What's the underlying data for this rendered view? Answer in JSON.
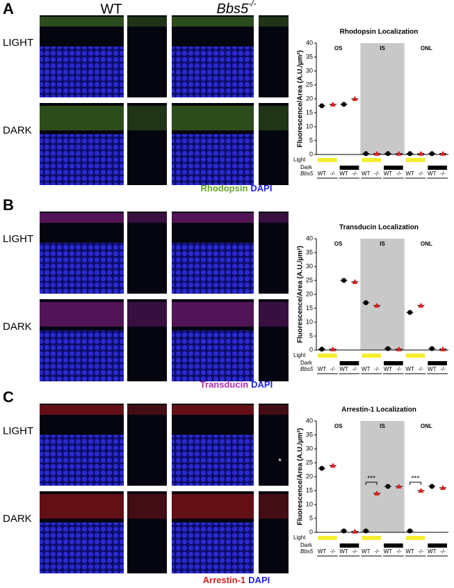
{
  "panels": [
    {
      "letter": "A",
      "header": {
        "wt": "WT",
        "ko": "Bbs5",
        "ko_sup": "-/-"
      },
      "rows": [
        "LIGHT",
        "DARK"
      ],
      "stain": [
        {
          "text": "Rhodopsin",
          "color": "#5fa32c"
        },
        {
          "text": "DAPI",
          "color": "#1f1fe0"
        }
      ],
      "chart": {
        "type": "scatter",
        "title": "Rhodopsin Localization",
        "ylabel": "Fluorescence/Area (A.U./µm²)",
        "ylim": [
          0,
          40
        ],
        "yticks": [
          0,
          5,
          10,
          15,
          20,
          25,
          30,
          35,
          40
        ],
        "regions": [
          "OS",
          "IS",
          "ONL"
        ],
        "categories": [
          "WT",
          "-/-",
          "WT",
          "-/-",
          "WT",
          "-/-",
          "WT",
          "-/-",
          "WT",
          "-/-",
          "WT",
          "-/-"
        ],
        "conditions": [
          "Light",
          "Dark"
        ],
        "genotype_label": "Bbs5",
        "markers": [
          "circle",
          "triangle"
        ],
        "series": [
          {
            "color": "#000000",
            "values": [
              17.5,
              null,
              18,
              null,
              0.3,
              null,
              0.3,
              null,
              0.3,
              null,
              0.3,
              null
            ]
          },
          {
            "color": "#e01b1b",
            "values": [
              null,
              18,
              null,
              20,
              null,
              0.3,
              null,
              0.3,
              null,
              0.3,
              null,
              0.3
            ]
          }
        ]
      }
    },
    {
      "letter": "B",
      "rows": [
        "LIGHT",
        "DARK"
      ],
      "stain": [
        {
          "text": "Transducin",
          "color": "#b02ab0"
        },
        {
          "text": "DAPI",
          "color": "#1f1fe0"
        }
      ],
      "chart": {
        "type": "scatter",
        "title": "Transducin Localization",
        "ylabel": "Fluorescence/Area (A.U./µm²)",
        "ylim": [
          0,
          40
        ],
        "yticks": [
          0,
          5,
          10,
          15,
          20,
          25,
          30,
          35,
          40
        ],
        "regions": [
          "OS",
          "IS",
          "ONL"
        ],
        "categories": [
          "WT",
          "-/-",
          "WT",
          "-/-",
          "WT",
          "-/-",
          "WT",
          "-/-",
          "WT",
          "-/-",
          "WT",
          "-/-"
        ],
        "conditions": [
          "Light",
          "Dark"
        ],
        "genotype_label": "Bbs5",
        "markers": [
          "circle",
          "triangle"
        ],
        "series": [
          {
            "color": "#000000",
            "values": [
              0.3,
              null,
              25,
              null,
              17,
              null,
              0.5,
              null,
              13.5,
              null,
              0.5,
              null
            ]
          },
          {
            "color": "#e01b1b",
            "values": [
              null,
              0.3,
              null,
              24.5,
              null,
              16,
              null,
              0.3,
              null,
              16,
              null,
              0.3
            ]
          }
        ]
      }
    },
    {
      "letter": "C",
      "rows": [
        "LIGHT",
        "DARK"
      ],
      "image_marker": "*",
      "stain": [
        {
          "text": "Arrestin-1",
          "color": "#d42020"
        },
        {
          "text": "DAPI",
          "color": "#1f1fe0"
        }
      ],
      "chart": {
        "type": "scatter",
        "title": "Arrestin-1 Localization",
        "ylabel": "Fluorescence/Area (A.U./µm²)",
        "ylim": [
          0,
          40
        ],
        "yticks": [
          0,
          5,
          10,
          15,
          20,
          25,
          30,
          35,
          40
        ],
        "regions": [
          "OS",
          "IS",
          "ONL"
        ],
        "categories": [
          "WT",
          "-/-",
          "WT",
          "-/-",
          "WT",
          "-/-",
          "WT",
          "-/-",
          "WT",
          "-/-",
          "WT",
          "-/-"
        ],
        "conditions": [
          "Light",
          "Dark"
        ],
        "genotype_label": "Bbs5",
        "markers": [
          "circle",
          "triangle"
        ],
        "annotations": [
          "***",
          "***"
        ],
        "series": [
          {
            "color": "#000000",
            "values": [
              23,
              null,
              0.5,
              null,
              0.5,
              null,
              16.5,
              null,
              0.5,
              null,
              16.5,
              null
            ]
          },
          {
            "color": "#e01b1b",
            "values": [
              null,
              24,
              null,
              0.3,
              null,
              14,
              null,
              16.5,
              null,
              15,
              null,
              16
            ]
          }
        ]
      }
    }
  ]
}
